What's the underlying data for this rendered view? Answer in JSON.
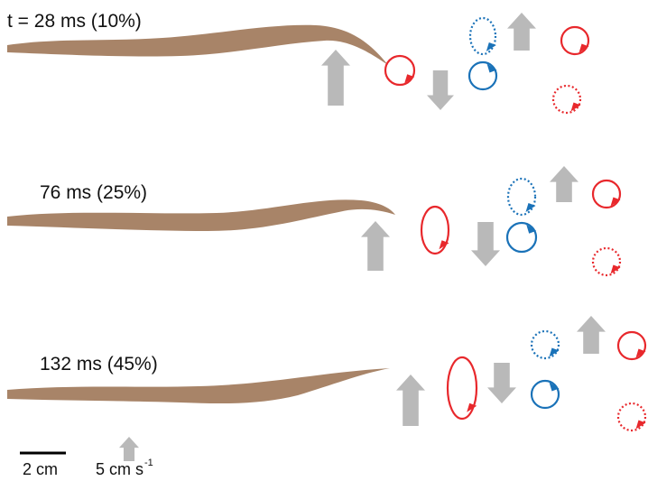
{
  "panels": [
    {
      "label": "t = 28 ms (10%)"
    },
    {
      "label": "76 ms (25%)"
    },
    {
      "label": "132 ms (45%)"
    }
  ],
  "scale_bar": {
    "length": "2 cm",
    "velocity": "5 cm s",
    "velocity_exponent": "-1"
  }
}
